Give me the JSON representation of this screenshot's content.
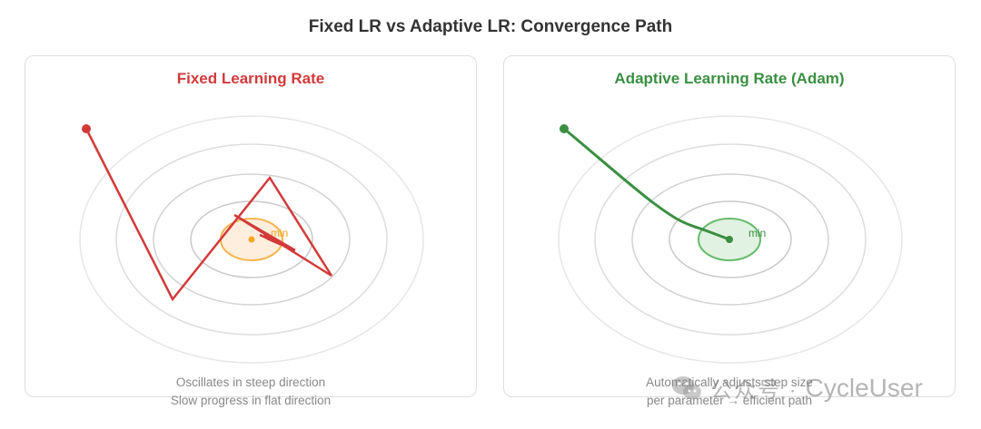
{
  "title": "Fixed LR vs Adaptive LR: Convergence Path",
  "panels": {
    "fixed": {
      "title": "Fixed Learning Rate",
      "min_label": "min",
      "caption_line1": "Oscillates in steep direction",
      "caption_line2": "Slow progress in flat direction",
      "color": "#d23a3a",
      "min_color": "#f5a623"
    },
    "adaptive": {
      "title": "Adaptive Learning Rate (Adam)",
      "min_label": "min",
      "caption_line1": "Automatically adjusts step size",
      "caption_line2": "per parameter → efficient path",
      "color": "#3a8f42",
      "min_color": "#3a8f42"
    }
  },
  "watermark": {
    "icon": "wechat-icon",
    "prefix": "公众号 ·",
    "text": "CycleUser"
  }
}
